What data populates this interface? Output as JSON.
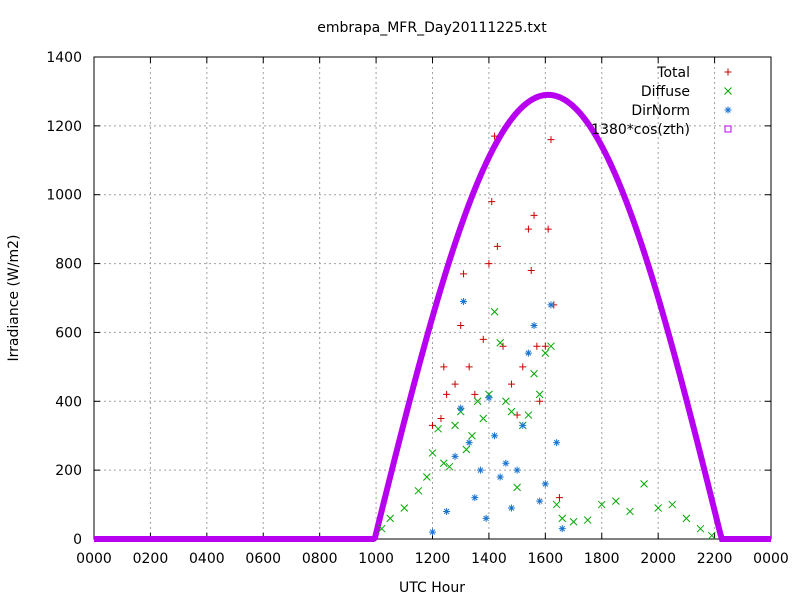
{
  "chart_data": {
    "type": "scatter",
    "title": "embrapa_MFR_Day20111225.txt",
    "xlabel": "UTC Hour",
    "ylabel": "Irradiance (W/m2)",
    "xlim": [
      0,
      2400
    ],
    "ylim": [
      0,
      1400
    ],
    "x_ticks": [
      "0000",
      "0200",
      "0400",
      "0600",
      "0800",
      "1000",
      "1200",
      "1400",
      "1600",
      "1800",
      "2000",
      "2200",
      "0000"
    ],
    "y_ticks": [
      "0",
      "200",
      "400",
      "600",
      "800",
      "1000",
      "1200",
      "1400"
    ],
    "grid": true,
    "legend_position": "top-right",
    "series": [
      {
        "name": "Total",
        "marker": "+",
        "color": "#cc0000",
        "points": [
          [
            1200,
            330
          ],
          [
            1230,
            350
          ],
          [
            1240,
            500
          ],
          [
            1250,
            420
          ],
          [
            1280,
            450
          ],
          [
            1300,
            620
          ],
          [
            1310,
            770
          ],
          [
            1330,
            500
          ],
          [
            1350,
            420
          ],
          [
            1380,
            580
          ],
          [
            1400,
            800
          ],
          [
            1410,
            980
          ],
          [
            1420,
            1170
          ],
          [
            1430,
            850
          ],
          [
            1450,
            560
          ],
          [
            1480,
            450
          ],
          [
            1500,
            360
          ],
          [
            1520,
            500
          ],
          [
            1540,
            900
          ],
          [
            1550,
            780
          ],
          [
            1560,
            940
          ],
          [
            1570,
            560
          ],
          [
            1580,
            400
          ],
          [
            1600,
            560
          ],
          [
            1610,
            900
          ],
          [
            1620,
            1160
          ],
          [
            1630,
            680
          ],
          [
            1650,
            120
          ]
        ]
      },
      {
        "name": "Diffuse",
        "marker": "x",
        "color": "#00aa00",
        "points": [
          [
            1020,
            30
          ],
          [
            1050,
            60
          ],
          [
            1100,
            90
          ],
          [
            1150,
            140
          ],
          [
            1180,
            180
          ],
          [
            1200,
            250
          ],
          [
            1220,
            320
          ],
          [
            1240,
            220
          ],
          [
            1260,
            210
          ],
          [
            1280,
            330
          ],
          [
            1300,
            370
          ],
          [
            1320,
            260
          ],
          [
            1340,
            300
          ],
          [
            1360,
            400
          ],
          [
            1380,
            350
          ],
          [
            1400,
            420
          ],
          [
            1420,
            660
          ],
          [
            1440,
            570
          ],
          [
            1460,
            400
          ],
          [
            1480,
            370
          ],
          [
            1500,
            150
          ],
          [
            1520,
            330
          ],
          [
            1540,
            360
          ],
          [
            1560,
            480
          ],
          [
            1580,
            420
          ],
          [
            1600,
            540
          ],
          [
            1620,
            560
          ],
          [
            1640,
            100
          ],
          [
            1660,
            60
          ],
          [
            1700,
            50
          ],
          [
            1750,
            55
          ],
          [
            1800,
            100
          ],
          [
            1850,
            110
          ],
          [
            1900,
            80
          ],
          [
            1950,
            160
          ],
          [
            2000,
            90
          ],
          [
            2050,
            100
          ],
          [
            2100,
            60
          ],
          [
            2150,
            30
          ],
          [
            2190,
            10
          ]
        ]
      },
      {
        "name": "DirNorm",
        "marker": "*",
        "color": "#1a75d1",
        "points": [
          [
            1200,
            20
          ],
          [
            1250,
            80
          ],
          [
            1280,
            240
          ],
          [
            1300,
            380
          ],
          [
            1310,
            690
          ],
          [
            1330,
            280
          ],
          [
            1350,
            120
          ],
          [
            1370,
            200
          ],
          [
            1390,
            60
          ],
          [
            1400,
            410
          ],
          [
            1420,
            300
          ],
          [
            1440,
            180
          ],
          [
            1460,
            220
          ],
          [
            1480,
            90
          ],
          [
            1500,
            200
          ],
          [
            1520,
            330
          ],
          [
            1540,
            540
          ],
          [
            1560,
            620
          ],
          [
            1580,
            110
          ],
          [
            1600,
            160
          ],
          [
            1620,
            680
          ],
          [
            1640,
            280
          ],
          [
            1660,
            30
          ]
        ]
      },
      {
        "name": "1380*cos(zth)",
        "marker": "square",
        "color": "#b800f0",
        "curve": {
          "start": 995,
          "end": 2225,
          "peak_x": 1610,
          "peak_y": 1290
        }
      }
    ]
  }
}
